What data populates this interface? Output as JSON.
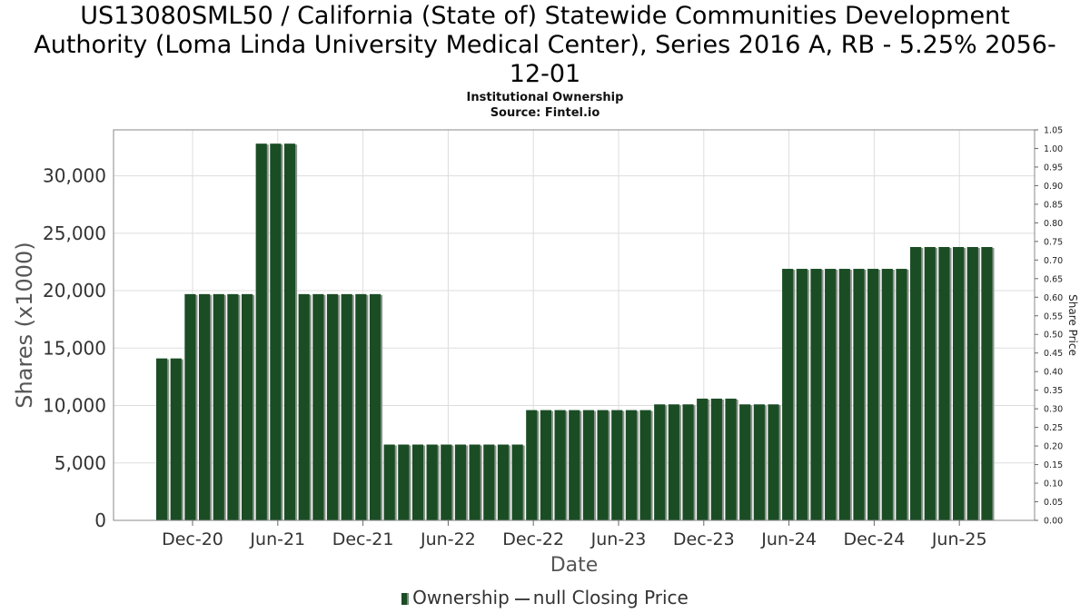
{
  "header": {
    "title_line1": "US13080SML50 / California (State of) Statewide Communities Development",
    "title_line2": "Authority (Loma Linda University Medical Center), Series 2016 A, RB - 5.25% 2056-",
    "title_line3": "12-01",
    "subtitle": "Institutional Ownership",
    "source": "Source: Fintel.io"
  },
  "legend": {
    "ownership": "Ownership",
    "price": "null Closing Price"
  },
  "chart_data": {
    "type": "bar",
    "xlabel": "Date",
    "ylabel": "Shares (x1000)",
    "y2label": "Share Price",
    "ylim": [
      0,
      34000
    ],
    "y2lim": [
      0,
      1.05
    ],
    "yticks": [
      0,
      5000,
      10000,
      15000,
      20000,
      25000,
      30000
    ],
    "ytick_labels": [
      "0",
      "5,000",
      "10,000",
      "15,000",
      "20,000",
      "25,000",
      "30,000"
    ],
    "y2ticks": [
      "0.00",
      "0.05",
      "0.10",
      "0.15",
      "0.20",
      "0.25",
      "0.30",
      "0.35",
      "0.40",
      "0.45",
      "0.50",
      "0.55",
      "0.60",
      "0.65",
      "0.70",
      "0.75",
      "0.80",
      "0.85",
      "0.90",
      "0.95",
      "1.00",
      "1.05"
    ],
    "xticks": [
      "Dec-20",
      "Jun-21",
      "Dec-21",
      "Jun-22",
      "Dec-22",
      "Jun-23",
      "Dec-23",
      "Jun-24",
      "Dec-24",
      "Jun-25"
    ],
    "grid": true,
    "legend_position": "bottom",
    "series": [
      {
        "name": "Ownership",
        "color": "#1b4d25",
        "values": [
          14100,
          14100,
          19700,
          19700,
          19700,
          19700,
          19700,
          32800,
          32800,
          32800,
          19700,
          19700,
          19700,
          19700,
          19700,
          19700,
          6600,
          6600,
          6600,
          6600,
          6600,
          6600,
          6600,
          6600,
          6600,
          6600,
          9600,
          9600,
          9600,
          9600,
          9600,
          9600,
          9600,
          9600,
          9600,
          10100,
          10100,
          10100,
          10600,
          10600,
          10600,
          10100,
          10100,
          10100,
          21900,
          21900,
          21900,
          21900,
          21900,
          21900,
          21900,
          21900,
          21900,
          23800,
          23800,
          23800,
          23800,
          23800,
          23800
        ]
      }
    ]
  }
}
